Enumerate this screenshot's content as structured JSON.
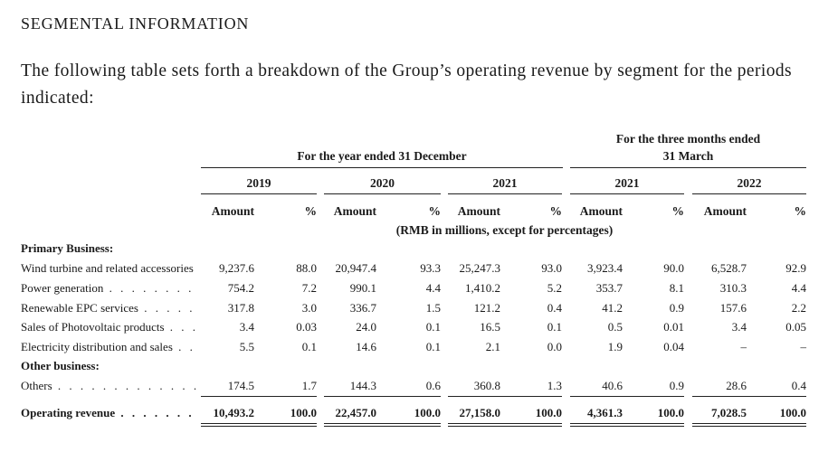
{
  "heading": "SEGMENTAL INFORMATION",
  "intro": "The following table sets forth a breakdown of the Group’s operating revenue by segment for the periods indicated:",
  "table": {
    "group_year": "For the year ended 31 December",
    "group_quarter_line1": "For the three months ended",
    "group_quarter_line2": "31 March",
    "years": [
      "2019",
      "2020",
      "2021",
      "2021",
      "2022"
    ],
    "col_amount": "Amount",
    "col_pct": "%",
    "unit_note": "(RMB in millions, except for percentages)",
    "section_primary": "Primary Business:",
    "section_other": "Other business:",
    "rows": [
      {
        "label": "Wind turbine and related accessories",
        "leader": "",
        "values": [
          "9,237.6",
          "88.0",
          "20,947.4",
          "93.3",
          "25,247.3",
          "93.0",
          "3,923.4",
          "90.0",
          "6,528.7",
          "92.9"
        ]
      },
      {
        "label": "Power generation",
        "leader": ". . . . . . . . . . .",
        "values": [
          "754.2",
          "7.2",
          "990.1",
          "4.4",
          "1,410.2",
          "5.2",
          "353.7",
          "8.1",
          "310.3",
          "4.4"
        ]
      },
      {
        "label": "Renewable EPC services",
        "leader": ". . . . . . .",
        "values": [
          "317.8",
          "3.0",
          "336.7",
          "1.5",
          "121.2",
          "0.4",
          "41.2",
          "0.9",
          "157.6",
          "2.2"
        ]
      },
      {
        "label": "Sales of Photovoltaic products",
        "leader": ". . . .",
        "values": [
          "3.4",
          "0.03",
          "24.0",
          "0.1",
          "16.5",
          "0.1",
          "0.5",
          "0.01",
          "3.4",
          "0.05"
        ]
      },
      {
        "label": "Electricity distribution and sales",
        "leader": ". . .",
        "values": [
          "5.5",
          "0.1",
          "14.6",
          "0.1",
          "2.1",
          "0.0",
          "1.9",
          "0.04",
          "–",
          "–"
        ]
      }
    ],
    "others": {
      "label": "Others",
      "leader": ". . . . . . . . . . . . . . . . .",
      "values": [
        "174.5",
        "1.7",
        "144.3",
        "0.6",
        "360.8",
        "1.3",
        "40.6",
        "0.9",
        "28.6",
        "0.4"
      ]
    },
    "total": {
      "label": "Operating revenue",
      "leader": ". . . . . . . . .",
      "values": [
        "10,493.2",
        "100.0",
        "22,457.0",
        "100.0",
        "27,158.0",
        "100.0",
        "4,361.3",
        "100.0",
        "7,028.5",
        "100.0"
      ]
    }
  }
}
